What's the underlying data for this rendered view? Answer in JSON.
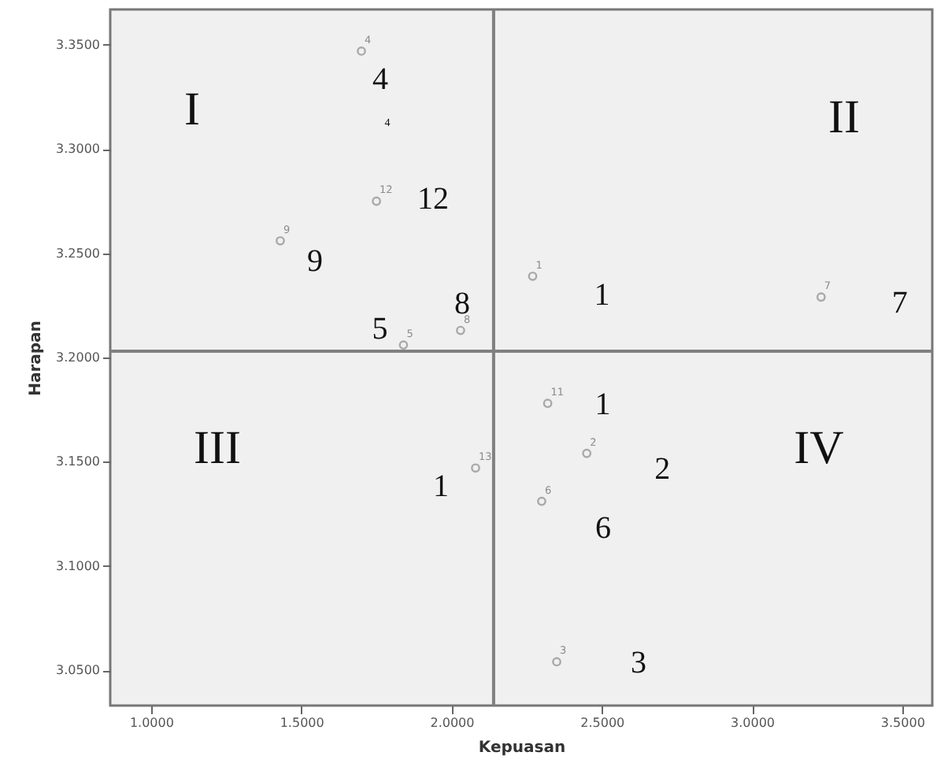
{
  "chart_data": {
    "type": "scatter",
    "xlabel": "Kepuasan",
    "ylabel": "Harapan",
    "xlim": [
      0.864,
      3.6
    ],
    "ylim": [
      3.033,
      3.367
    ],
    "xticks": [
      {
        "value": 1,
        "label": "1.0000"
      },
      {
        "value": 1.5,
        "label": "1.5000"
      },
      {
        "value": 2,
        "label": "2.0000"
      },
      {
        "value": 2.5,
        "label": "2.5000"
      },
      {
        "value": 3,
        "label": "3.0000"
      },
      {
        "value": 3.5,
        "label": "3.5000"
      }
    ],
    "yticks": [
      {
        "value": 3.05,
        "label": "3.0500"
      },
      {
        "value": 3.1,
        "label": "3.1000"
      },
      {
        "value": 3.15,
        "label": "3.1500"
      },
      {
        "value": 3.2,
        "label": "3.2000"
      },
      {
        "value": 3.25,
        "label": "3.2500"
      },
      {
        "value": 3.3,
        "label": "3.3000"
      },
      {
        "value": 3.35,
        "label": "3.3500"
      }
    ],
    "grid": false,
    "marker": "circle",
    "series": [
      {
        "color": "#8c8c8c",
        "x": [
          2.27,
          2.45,
          2.35,
          1.7,
          1.84,
          2.3,
          3.23,
          2.03,
          1.43,
          2.32,
          1.75,
          2.08
        ],
        "values": [
          3.239,
          3.154,
          3.054,
          3.347,
          3.206,
          3.131,
          3.229,
          3.213,
          3.256,
          3.178,
          3.275,
          3.147
        ]
      }
    ],
    "ref_lines": [
      {
        "axis": "x",
        "value": 2.14,
        "color": "#808080"
      },
      {
        "axis": "y",
        "value": 3.203,
        "color": "#808080"
      }
    ],
    "annotations": [
      "I",
      "II",
      "III",
      "IV",
      "4",
      {
        "text": "1",
        "x": 2.27,
        "y": 3.239
      },
      {
        "text": "2",
        "x": 2.45,
        "y": 3.154
      },
      {
        "text": "3",
        "x": 2.35,
        "y": 3.054
      },
      {
        "text": "4",
        "x": 1.7,
        "y": 3.347
      },
      {
        "text": "5",
        "x": 1.84,
        "y": 3.206
      },
      {
        "text": "6",
        "x": 2.3,
        "y": 3.131
      },
      {
        "text": "7",
        "x": 3.23,
        "y": 3.229
      },
      {
        "text": "8",
        "x": 2.03,
        "y": 3.213
      },
      {
        "text": "9",
        "x": 1.43,
        "y": 3.256
      },
      {
        "text": "11",
        "x": 2.32,
        "y": 3.178
      },
      {
        "text": "12",
        "x": 1.75,
        "y": 3.275
      },
      {
        "text": "13",
        "x": 2.08,
        "y": 3.147
      },
      {
        "text": "4",
        "x": 1.7,
        "y": 3.347
      },
      {
        "text": "12",
        "x": 1.75,
        "y": 3.275
      },
      {
        "text": "9",
        "x": 1.43,
        "y": 3.256
      },
      {
        "text": "8",
        "x": 2.03,
        "y": 3.213
      },
      {
        "text": "5",
        "x": 1.84,
        "y": 3.206
      },
      {
        "text": "1",
        "x": 2.27,
        "y": 3.239
      },
      {
        "text": "7",
        "x": 3.23,
        "y": 3.229
      },
      {
        "text": "1",
        "x": 2.32,
        "y": 3.178
      },
      {
        "text": "2",
        "x": 2.45,
        "y": 3.154
      },
      {
        "text": "1",
        "x": 2.08,
        "y": 3.147
      },
      {
        "text": "6",
        "x": 2.3,
        "y": 3.131
      },
      {
        "text": "3",
        "x": 2.35,
        "y": 3.054
      }
    ]
  }
}
